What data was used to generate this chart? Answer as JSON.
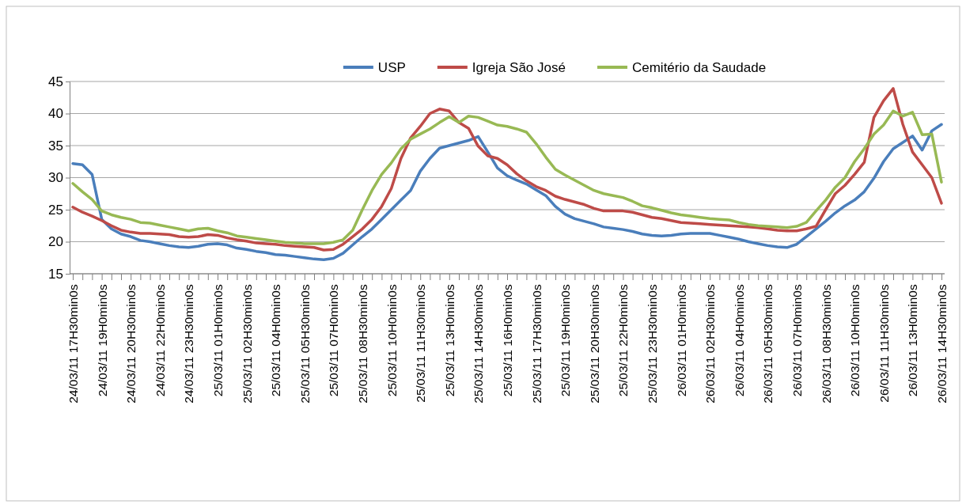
{
  "chart_data": {
    "type": "line",
    "categories": [
      "24/03/11 17H30min0s",
      null,
      null,
      "24/03/11 19H0min0s",
      null,
      null,
      "24/03/11 20H30min0s",
      null,
      null,
      "24/03/11 22H0min0s",
      null,
      null,
      "24/03/11 23H30min0s",
      null,
      null,
      "25/03/11 01H0min0s",
      null,
      null,
      "25/03/11 02H30min0s",
      null,
      null,
      "25/03/11 04H0min0s",
      null,
      null,
      "25/03/11 05H30min0s",
      null,
      null,
      "25/03/11 07H0min0s",
      null,
      null,
      "25/03/11 08H30min0s",
      null,
      null,
      "25/03/11 10H0min0s",
      null,
      null,
      "25/03/11 11H30min0s",
      null,
      null,
      "25/03/11 13H0min0s",
      null,
      null,
      "25/03/11 14H30min0s",
      null,
      null,
      "25/03/11 16H0min0s",
      null,
      null,
      "25/03/11 17H30min0s",
      null,
      null,
      "25/03/11 19H0min0s",
      null,
      null,
      "25/03/11 20H30min0s",
      null,
      null,
      "25/03/11 22H0min0s",
      null,
      null,
      "25/03/11 23H30min0s",
      null,
      null,
      "26/03/11 01H0min0s",
      null,
      null,
      "26/03/11 02H30min0s",
      null,
      null,
      "26/03/11 04H0min0s",
      null,
      null,
      "26/03/11 05H30min0s",
      null,
      null,
      "26/03/11 07H0min0s",
      null,
      null,
      "26/03/11 08H30min0s",
      null,
      null,
      "26/03/11 10H0min0s",
      null,
      null,
      "26/03/11 11H30min0s",
      null,
      null,
      "26/03/11 13H0min0s",
      null,
      null,
      "26/03/11 14H30min0s"
    ],
    "series": [
      {
        "name": "USP",
        "color": "#4a7ebb",
        "values": [
          32.2,
          32,
          30.5,
          23.5,
          22,
          21.2,
          20.8,
          20.2,
          20,
          19.7,
          19.4,
          19.2,
          19.1,
          19.3,
          19.6,
          19.7,
          19.5,
          19,
          18.8,
          18.5,
          18.3,
          18,
          17.9,
          17.7,
          17.5,
          17.3,
          17.2,
          17.4,
          18.2,
          19.5,
          20.8,
          22,
          23.5,
          25,
          26.5,
          28,
          31,
          33,
          34.6,
          35,
          35.4,
          35.8,
          36.4,
          34,
          31.5,
          30.3,
          29.6,
          29,
          28.1,
          27.2,
          25.5,
          24.3,
          23.6,
          23.2,
          22.8,
          22.3,
          22.1,
          21.9,
          21.6,
          21.2,
          21,
          20.9,
          21,
          21.2,
          21.3,
          21.3,
          21.3,
          21,
          20.7,
          20.4,
          20,
          19.7,
          19.4,
          19.2,
          19.1,
          19.6,
          20.8,
          22,
          23.2,
          24.5,
          25.6,
          26.5,
          27.8,
          29.9,
          32.5,
          34.5,
          35.5,
          36.5,
          34.3,
          37.3,
          38.3
        ]
      },
      {
        "name": "Igreja São José",
        "color": "#be4b48",
        "values": [
          25.4,
          24.6,
          24,
          23.3,
          22.5,
          21.8,
          21.5,
          21.3,
          21.3,
          21.2,
          21.1,
          20.8,
          20.7,
          20.8,
          21.1,
          21,
          20.6,
          20.3,
          20.1,
          19.8,
          19.7,
          19.6,
          19.4,
          19.3,
          19.2,
          19.1,
          18.7,
          18.8,
          19.6,
          20.8,
          22,
          23.5,
          25.5,
          28.3,
          33,
          36.2,
          38,
          40,
          40.7,
          40.4,
          38.6,
          37.7,
          34.9,
          33.4,
          33,
          32,
          30.6,
          29.5,
          28.6,
          28,
          27.1,
          26.6,
          26.2,
          25.8,
          25.2,
          24.8,
          24.8,
          24.8,
          24.6,
          24.2,
          23.8,
          23.6,
          23.3,
          23,
          22.9,
          22.8,
          22.7,
          22.6,
          22.5,
          22.4,
          22.3,
          22.2,
          22,
          21.8,
          21.7,
          21.7,
          22,
          22.4,
          25,
          27.5,
          28.8,
          30.5,
          32.4,
          39.4,
          42,
          43.9,
          38.3,
          34,
          32,
          30,
          26
        ]
      },
      {
        "name": "Cemitério da Saudade",
        "color": "#98b954",
        "values": [
          29.1,
          27.8,
          26.6,
          24.8,
          24.2,
          23.8,
          23.5,
          23,
          22.9,
          22.6,
          22.3,
          22,
          21.7,
          22,
          22.1,
          21.7,
          21.4,
          20.9,
          20.7,
          20.5,
          20.3,
          20.1,
          19.9,
          19.8,
          19.7,
          19.7,
          19.7,
          19.9,
          20.3,
          21.8,
          25,
          28,
          30.5,
          32.3,
          34.5,
          36,
          36.8,
          37.6,
          38.6,
          39.5,
          38.6,
          39.6,
          39.4,
          38.8,
          38.2,
          38,
          37.6,
          37.1,
          35.3,
          33.2,
          31.3,
          30.4,
          29.6,
          28.8,
          28,
          27.5,
          27.2,
          26.9,
          26.3,
          25.6,
          25.3,
          24.9,
          24.5,
          24.2,
          24,
          23.8,
          23.6,
          23.5,
          23.4,
          23,
          22.7,
          22.5,
          22.4,
          22.3,
          22.2,
          22.4,
          23,
          24.8,
          26.5,
          28.5,
          30,
          32.5,
          34.5,
          36.8,
          38.2,
          40.4,
          39.6,
          40.2,
          36.7,
          36.8,
          29.3
        ]
      }
    ],
    "ylim": [
      15,
      45
    ],
    "yticks": [
      15,
      20,
      25,
      30,
      35,
      40,
      45
    ],
    "grid": "y",
    "legend": "top",
    "marker": "none",
    "line_style": "solid"
  }
}
